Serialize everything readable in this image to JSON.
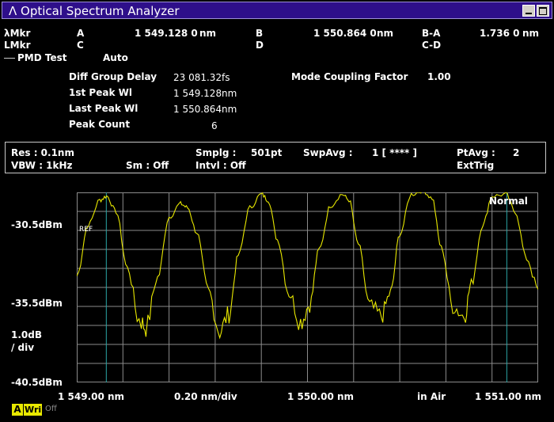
{
  "window": {
    "title": "Optical Spectrum Analyzer",
    "logo": "Λ"
  },
  "markers": {
    "lmkr_label": "λMkr",
    "lmkr2_label": "LMkr",
    "a_label": "A",
    "a_value": "1 549.128 0",
    "a_unit": "nm",
    "b_label": "B",
    "b_value": "1 550.864 0",
    "b_unit": "nm",
    "ba_label": "B-A",
    "ba_value": "1.736 0",
    "ba_unit": "nm",
    "c_label": "C",
    "d_label": "D",
    "cd_label": "C-D"
  },
  "pmd": {
    "section_label": "PMD Test",
    "mode": "Auto",
    "rows": [
      {
        "label": "Diff Group Delay",
        "value": "23 081.32",
        "unit": "fs"
      },
      {
        "label": "1st Peak Wl",
        "value": "1 549.128",
        "unit": "nm"
      },
      {
        "label": "Last Peak Wl",
        "value": "1 550.864",
        "unit": "nm"
      },
      {
        "label": "Peak Count",
        "value": "6",
        "unit": ""
      }
    ],
    "mcf_label": "Mode Coupling Factor",
    "mcf_value": "1.00"
  },
  "settings": {
    "res": "Res :  0.1nm",
    "vbw": "VBW :     1kHz",
    "sm": "Sm :     Off",
    "smplg": "Smplg :",
    "smplg_val": "501pt",
    "intvl": "Intvl :      Off",
    "swpavg": "SwpAvg :",
    "swpavg_val": "1 [      ****     ]",
    "ptavg": "PtAvg :",
    "ptavg_val": "2",
    "trig": "ExtTrig"
  },
  "chart": {
    "mode": "Normal",
    "ref": "REF",
    "y_top": "-30.5dBm",
    "y_mid": "-35.5dBm",
    "y_bot": "-40.5dBm",
    "scale": "1.0dB",
    "scale2": "/ div",
    "x_left": "1 549.00 nm",
    "x_div": "0.20 nm/div",
    "x_center": "1 550.00 nm",
    "x_medium": "in Air",
    "x_right": "1 551.00 nm",
    "colors": {
      "trace": "#e8e800",
      "marker": "#2aa7a7",
      "grid": "#8c8c8c"
    }
  },
  "chart_data": {
    "type": "line",
    "xlabel": "",
    "ylabel": "",
    "xlim": [
      1549.0,
      1551.0
    ],
    "ylim": [
      -40.5,
      -30.5
    ],
    "y_scale_dB_per_div": 1.0,
    "markers_x": [
      1549.128,
      1550.864
    ],
    "x": [
      1549.0,
      1549.05,
      1549.1,
      1549.13,
      1549.17,
      1549.22,
      1549.27,
      1549.3,
      1549.35,
      1549.4,
      1549.45,
      1549.48,
      1549.52,
      1549.57,
      1549.62,
      1549.66,
      1549.7,
      1549.75,
      1549.8,
      1549.83,
      1549.87,
      1549.92,
      1549.97,
      1550.01,
      1550.05,
      1550.1,
      1550.15,
      1550.18,
      1550.22,
      1550.27,
      1550.32,
      1550.36,
      1550.4,
      1550.45,
      1550.5,
      1550.54,
      1550.58,
      1550.63,
      1550.68,
      1550.71,
      1550.76,
      1550.8,
      1550.86,
      1550.9,
      1550.95,
      1551.0
    ],
    "y": [
      -34.9,
      -32.2,
      -30.9,
      -30.7,
      -31.5,
      -34.5,
      -37.2,
      -37.6,
      -35.0,
      -31.8,
      -31.1,
      -31.3,
      -32.6,
      -35.7,
      -37.8,
      -36.9,
      -33.8,
      -31.3,
      -30.6,
      -30.9,
      -33.0,
      -35.8,
      -37.3,
      -36.4,
      -33.5,
      -31.2,
      -30.6,
      -30.9,
      -33.2,
      -36.5,
      -37.0,
      -35.8,
      -32.7,
      -30.6,
      -30.4,
      -30.8,
      -33.4,
      -36.5,
      -37.0,
      -35.3,
      -32.2,
      -30.7,
      -30.6,
      -31.5,
      -34.0,
      -35.6
    ]
  },
  "statusbar": {
    "a": "A",
    "wri": "Wri",
    "off": "Off"
  }
}
